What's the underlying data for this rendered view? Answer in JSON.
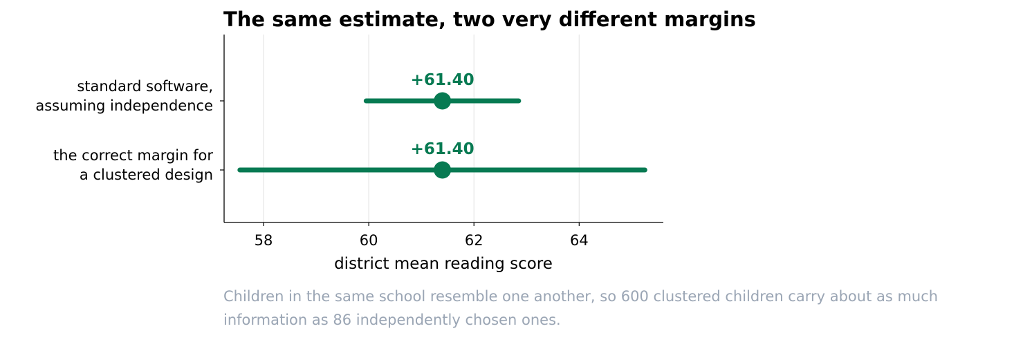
{
  "chart_data": {
    "type": "errorbar",
    "title": "The same estimate, two very different margins",
    "xlabel": "district mean reading score",
    "xlim": [
      57.25,
      65.6
    ],
    "xticks": [
      58,
      60,
      62,
      64
    ],
    "grid": "vertical",
    "color": "#077a52",
    "categories": [
      {
        "label_lines": [
          "standard software,",
          "assuming independence"
        ],
        "estimate": 61.4,
        "low": 59.95,
        "high": 62.85,
        "data_label": "+61.40"
      },
      {
        "label_lines": [
          "the correct margin for",
          "a clustered design"
        ],
        "estimate": 61.4,
        "low": 57.55,
        "high": 65.25,
        "data_label": "+61.40"
      }
    ]
  },
  "caption": "Children in the same school resemble one another, so 600 clustered children carry about as much information as 86 independently chosen ones."
}
